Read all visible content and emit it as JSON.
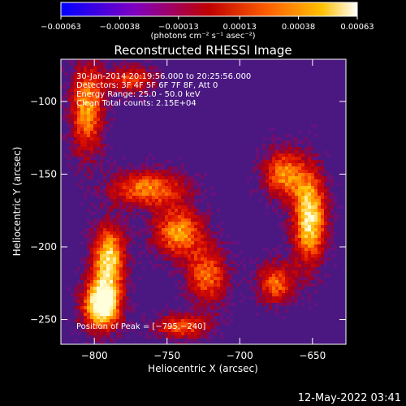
{
  "chart_data": {
    "type": "heatmap",
    "title": "Reconstructed RHESSI Image",
    "xlabel": "Heliocentric X (arcsec)",
    "ylabel": "Heliocentric Y (arcsec)",
    "xlim": [
      -823,
      -627
    ],
    "ylim": [
      -267,
      -71
    ],
    "x_ticks": [
      -800,
      -750,
      -700,
      -650
    ],
    "y_ticks": [
      -250,
      -200,
      -150,
      -100
    ],
    "x_tick_labels": [
      "−800",
      "−750",
      "−700",
      "−650"
    ],
    "y_tick_labels": [
      "−250",
      "−200",
      "−150",
      "−100"
    ],
    "colorbar": {
      "range": [
        -0.00063,
        0.00063
      ],
      "ticks": [
        -0.00063,
        -0.00038,
        -0.00013,
        0.00013,
        0.00038,
        0.00063
      ],
      "tick_labels": [
        "−0.00063",
        "−0.00038",
        "−0.00013",
        "0.00013",
        "0.00038",
        "0.00063"
      ],
      "units": "(photons cm⁻² s⁻¹ asec⁻²)",
      "colors": [
        "#0000ff",
        "#8000c0",
        "#c00000",
        "#ff6000",
        "#ffc000",
        "#ffffff"
      ]
    },
    "annotations": {
      "time_range": "30-Jan-2014 20:19:56.000 to 20:25:56.000",
      "detectors": "Detectors: 3F 4F 5F 6F 7F 8F, Att 0",
      "energy": "Energy Range: 25.0 - 50.0 keV",
      "clean": "Clean    Total counts: 2.15E+04",
      "peak": "Position of Peak = [−795,−240]"
    },
    "peak": [
      -795,
      -240
    ],
    "sources": [
      {
        "x": -795,
        "y": -240,
        "sx": 9,
        "sy": 12,
        "amp": 1.0
      },
      {
        "x": -790,
        "y": -208,
        "sx": 8,
        "sy": 16,
        "amp": 0.8
      },
      {
        "x": -805,
        "y": -105,
        "sx": 8,
        "sy": 22,
        "amp": 0.65
      },
      {
        "x": -763,
        "y": -160,
        "sx": 18,
        "sy": 9,
        "amp": 0.6
      },
      {
        "x": -742,
        "y": -190,
        "sx": 12,
        "sy": 12,
        "amp": 0.65
      },
      {
        "x": -722,
        "y": -220,
        "sx": 10,
        "sy": 14,
        "amp": 0.55
      },
      {
        "x": -652,
        "y": -180,
        "sx": 8,
        "sy": 22,
        "amp": 0.85
      },
      {
        "x": -670,
        "y": -150,
        "sx": 10,
        "sy": 12,
        "amp": 0.6
      },
      {
        "x": -675,
        "y": -225,
        "sx": 9,
        "sy": 10,
        "amp": 0.55
      },
      {
        "x": -740,
        "y": -255,
        "sx": 14,
        "sy": 6,
        "amp": 0.5
      },
      {
        "x": -775,
        "y": -85,
        "sx": 12,
        "sy": 7,
        "amp": 0.45
      }
    ]
  },
  "footer": {
    "timestamp": "12-May-2022 03:41"
  }
}
